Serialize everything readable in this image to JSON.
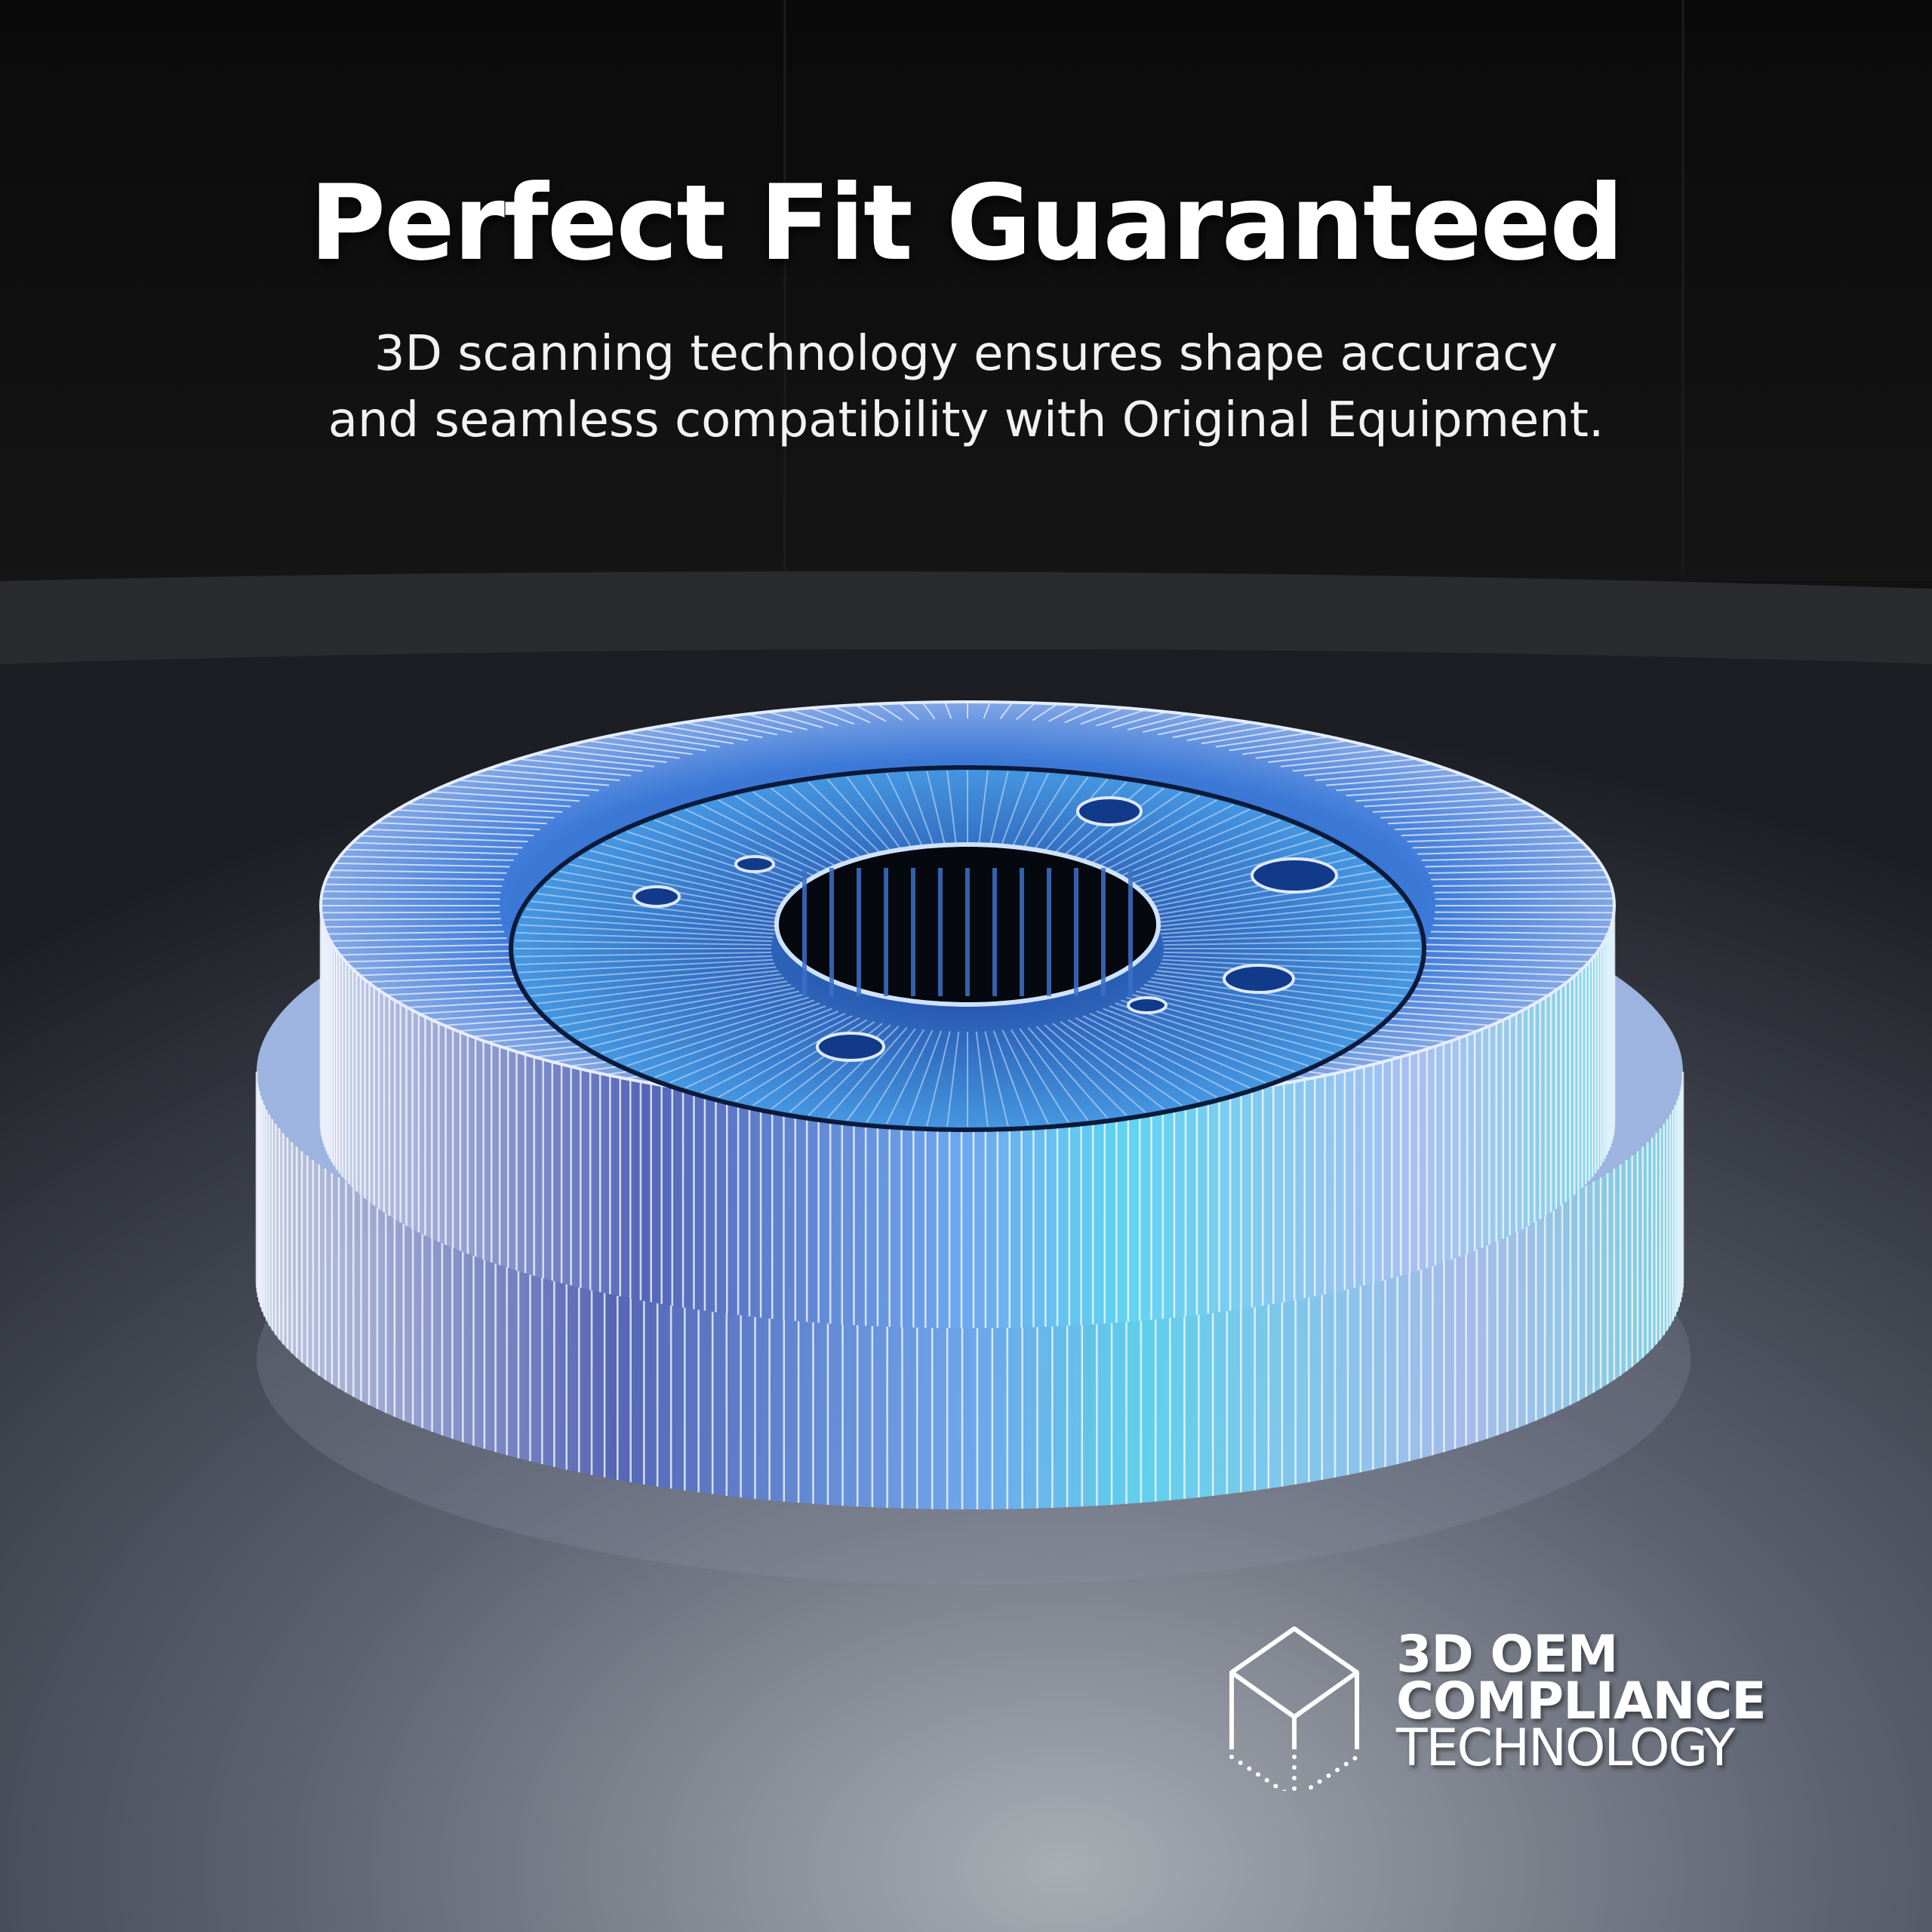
{
  "headline": {
    "title": "Perfect Fit Guaranteed",
    "subtitle_line1": "3D scanning technology ensures shape accuracy",
    "subtitle_line2": "and seamless compatibility with Original Equipment."
  },
  "badge": {
    "icon": "wireframe-cube-icon",
    "line1": "3D OEM",
    "line2": "COMPLIANCE",
    "line3": "TECHNOLOGY"
  },
  "colors": {
    "background_top": "#0b0b0b",
    "floor": "#4a4e58",
    "wireframe_blue": "#5aa8ff",
    "accent_cyan": "#6fe0ff",
    "text": "#ffffff"
  }
}
